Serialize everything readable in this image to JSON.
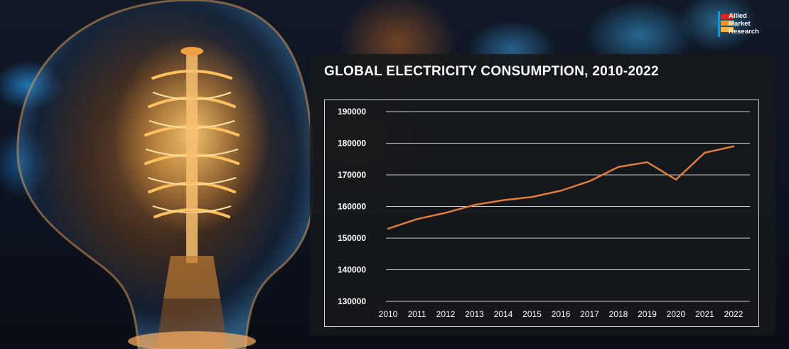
{
  "logo": {
    "line1": "Allied",
    "line2": "Market",
    "line3": "Research",
    "colors": [
      "#e2231a",
      "#f7941d",
      "#fbb040",
      "#00a0e3"
    ]
  },
  "chart_data": {
    "type": "line",
    "title": "GLOBAL ELECTRICITY CONSUMPTION, 2010-2022",
    "xlabel": "",
    "ylabel": "",
    "categories": [
      "2010",
      "2011",
      "2012",
      "2013",
      "2014",
      "2015",
      "2016",
      "2017",
      "2018",
      "2019",
      "2020",
      "2021",
      "2022"
    ],
    "series": [
      {
        "values": [
          153000,
          156000,
          158000,
          160500,
          162000,
          163000,
          165000,
          168000,
          172500,
          174000,
          168500,
          177000,
          179000
        ],
        "color": "#e07b39"
      }
    ],
    "ylim": [
      130000,
      190000
    ],
    "yticks": [
      "130000",
      "140000",
      "150000",
      "160000",
      "170000",
      "180000",
      "190000"
    ],
    "grid": true,
    "legend": "none"
  }
}
